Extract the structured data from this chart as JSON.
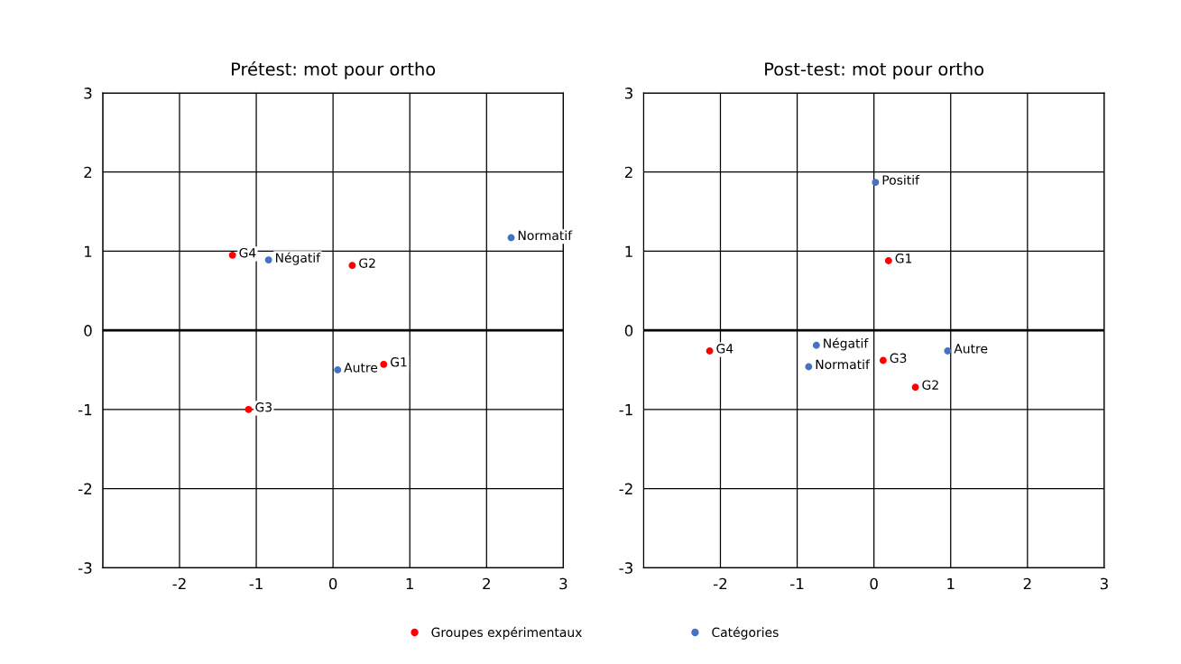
{
  "chart_data": [
    {
      "type": "scatter",
      "title": "Prétest: mot pour ortho",
      "xlim": [
        -3,
        3
      ],
      "ylim": [
        -3,
        3
      ],
      "xticks": [
        {
          "value": -3,
          "label": null
        },
        -2,
        -1,
        0,
        1,
        2,
        3
      ],
      "yticks": [
        -3,
        -2,
        -1,
        0,
        1,
        2,
        3
      ],
      "grid": true,
      "legend": "bottom",
      "marker": "circle",
      "ref_lines": [
        {
          "axis": "y",
          "value": 0,
          "color": "#000000"
        }
      ],
      "series": [
        {
          "name": "Groupes expérimentaux",
          "color": "#ff0000",
          "x": [
            -1.31,
            0.25,
            0.66,
            -1.1
          ],
          "values": [
            0.95,
            0.82,
            -0.43,
            -1.0
          ]
        },
        {
          "name": "Catégories",
          "color": "#4472c4",
          "x": [
            -0.84,
            2.32,
            0.06
          ],
          "values": [
            0.89,
            1.17,
            -0.5
          ]
        }
      ],
      "annotations": [
        {
          "text": "G4",
          "x": -1.31,
          "y": 0.95
        },
        {
          "text": "G2",
          "x": 0.25,
          "y": 0.82
        },
        {
          "text": "G1",
          "x": 0.66,
          "y": -0.43
        },
        {
          "text": "G3",
          "x": -1.1,
          "y": -1.0
        },
        {
          "text": "Négatif",
          "x": -0.84,
          "y": 0.89
        },
        {
          "text": "Normatif",
          "x": 2.32,
          "y": 1.17
        },
        {
          "text": "Autre",
          "x": 0.06,
          "y": -0.5
        }
      ]
    },
    {
      "type": "scatter",
      "title": "Post-test: mot pour ortho",
      "xlim": [
        -3,
        3
      ],
      "ylim": [
        -3,
        3
      ],
      "xticks": [
        {
          "value": -3,
          "label": null
        },
        -2,
        -1,
        0,
        1,
        2,
        3
      ],
      "yticks": [
        -3,
        -2,
        -1,
        0,
        1,
        2,
        3
      ],
      "grid": true,
      "marker": "circle",
      "ref_lines": [
        {
          "axis": "y",
          "value": 0,
          "color": "#000000"
        }
      ],
      "series": [
        {
          "name": "Groupes expérimentaux",
          "color": "#ff0000",
          "x": [
            0.19,
            0.54,
            0.12,
            -2.14
          ],
          "values": [
            0.88,
            -0.72,
            -0.38,
            -0.26
          ]
        },
        {
          "name": "Catégories",
          "color": "#4472c4",
          "x": [
            0.02,
            -0.75,
            -0.85,
            0.96
          ],
          "values": [
            1.87,
            -0.19,
            -0.46,
            -0.26
          ]
        }
      ],
      "annotations": [
        {
          "text": "G1",
          "x": 0.19,
          "y": 0.88
        },
        {
          "text": "G2",
          "x": 0.54,
          "y": -0.72
        },
        {
          "text": "G3",
          "x": 0.12,
          "y": -0.38
        },
        {
          "text": "G4",
          "x": -2.14,
          "y": -0.26
        },
        {
          "text": "Positif",
          "x": 0.02,
          "y": 1.87
        },
        {
          "text": "Négatif",
          "x": -0.75,
          "y": -0.19
        },
        {
          "text": "Normatif",
          "x": -0.85,
          "y": -0.46
        },
        {
          "text": "Autre",
          "x": 0.96,
          "y": -0.26
        }
      ]
    }
  ]
}
